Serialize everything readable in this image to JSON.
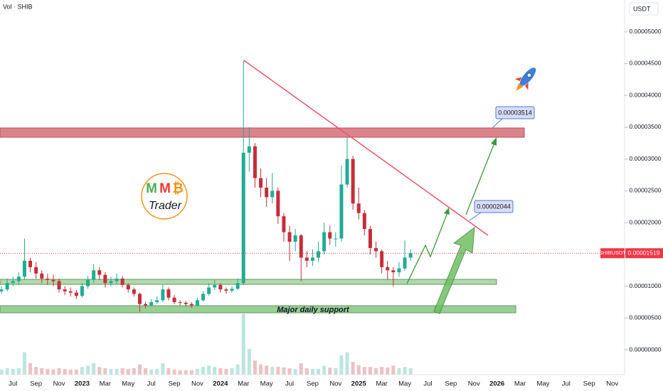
{
  "chart_data": {
    "type": "candlestick",
    "title": "Vol · SHIB",
    "currency": "USDT",
    "categories": [
      null,
      null,
      "Jul",
      null,
      null,
      null,
      "Sep",
      null,
      null,
      null,
      "Nov",
      null,
      null,
      null,
      "2023",
      null,
      null,
      null,
      "Mar",
      null,
      null,
      null,
      "May",
      null,
      null,
      null,
      "Jul",
      null,
      null,
      null,
      "Sep",
      null,
      null,
      null,
      "Nov",
      null,
      null,
      null,
      "2024",
      null,
      null,
      null,
      "Mar",
      null,
      null,
      null,
      "May",
      null,
      null,
      null,
      "Jul",
      null,
      null,
      null,
      "Sep",
      null,
      null,
      null,
      "Nov",
      null,
      null,
      null,
      "2025",
      null,
      null,
      null,
      "Mar",
      null,
      null,
      null,
      "May",
      null,
      null,
      null,
      "Jul",
      null,
      null,
      null,
      "Sep",
      null,
      null,
      null,
      "Nov",
      null,
      null,
      null,
      "2026",
      null,
      null,
      null,
      "Mar",
      null,
      null,
      null,
      "May",
      null,
      null,
      null,
      "Jul",
      null,
      null,
      null,
      "Sep",
      null,
      null,
      null,
      "Nov",
      null
    ],
    "open": [
      9.2e-06,
      9.5e-06,
      1.05e-05,
      1.08e-05,
      1.15e-05,
      1.4e-05,
      1.3e-05,
      1.2e-05,
      1.12e-05,
      1.1e-05,
      1.08e-05,
      9.5e-06,
      9.2e-06,
      9e-06,
      8.5e-06,
      1e-05,
      1.1e-05,
      1.25e-05,
      1.18e-05,
      1.05e-05,
      1.08e-05,
      1.12e-05,
      1.02e-05,
      9.5e-06,
      8.8e-06,
      7.2e-06,
      7e-06,
      7.5e-06,
      7.8e-06,
      9.5e-06,
      8.2e-06,
      7.5e-06,
      7.4e-06,
      7.2e-06,
      7e-06,
      7.8e-06,
      8.8e-06,
      9.8e-06,
      1.02e-05,
      9.5e-06,
      9.3e-06,
      9.6e-06,
      1.05e-05,
      3.1e-05,
      3.2e-05,
      2.7e-05,
      2.55e-05,
      2.4e-05,
      2.5e-05,
      2.1e-05,
      1.85e-05,
      1.7e-05,
      1.8e-05,
      1.45e-05,
      1.4e-05,
      1.45e-05,
      1.55e-05,
      1.85e-05,
      1.75e-05,
      1.75e-05,
      2.6e-05,
      3e-05,
      2.3e-05,
      2.15e-05,
      1.9e-05,
      1.6e-05,
      1.55e-05,
      1.3e-05,
      1.25e-05,
      1.22e-05,
      1.28e-05,
      1.45e-05,
      null,
      null,
      null,
      null,
      null,
      null,
      null,
      null,
      null,
      null,
      null,
      null,
      null,
      null,
      null,
      null,
      null,
      null,
      null,
      null,
      null,
      null,
      null,
      null,
      null,
      null,
      null,
      null,
      null,
      null,
      null,
      null,
      null,
      null,
      null,
      null
    ],
    "high": [
      1e-05,
      1.12e-05,
      1.15e-05,
      1.22e-05,
      1.75e-05,
      1.45e-05,
      1.38e-05,
      1.25e-05,
      1.2e-05,
      1.18e-05,
      1.12e-05,
      1e-05,
      9.8e-06,
      9.4e-06,
      1.05e-05,
      1.16e-05,
      1.35e-05,
      1.3e-05,
      1.22e-05,
      1.15e-05,
      1.2e-05,
      1.16e-05,
      1.05e-05,
      9.8e-06,
      9e-06,
      7.6e-06,
      8e-06,
      8.4e-06,
      1.02e-05,
      9.8e-06,
      8.6e-06,
      7.8e-06,
      7.7e-06,
      7.5e-06,
      8.2e-06,
      9.2e-06,
      1.05e-05,
      1.1e-05,
      1.05e-05,
      9.8e-06,
      1e-05,
      1.12e-05,
      4.55e-05,
      3.5e-05,
      3.25e-05,
      2.85e-05,
      2.7e-05,
      2.78e-05,
      2.55e-05,
      2.15e-05,
      1.95e-05,
      1.9e-05,
      1.82e-05,
      1.55e-05,
      1.58e-05,
      1.7e-05,
      2e-05,
      1.95e-05,
      1.85e-05,
      2.9e-05,
      3.35e-05,
      3.05e-05,
      2.55e-05,
      2.2e-05,
      1.95e-05,
      1.7e-05,
      1.58e-05,
      1.4e-05,
      1.3e-05,
      1.38e-05,
      1.72e-05,
      1.58e-05,
      null,
      null,
      null,
      null,
      null,
      null,
      null,
      null,
      null,
      null,
      null,
      null,
      null,
      null,
      null,
      null,
      null,
      null,
      null,
      null,
      null,
      null,
      null,
      null,
      null,
      null,
      null,
      null,
      null,
      null,
      null,
      null,
      null,
      null,
      null,
      null
    ],
    "low": [
      8.8e-06,
      9.2e-06,
      1e-05,
      1.02e-05,
      1.1e-05,
      1.22e-05,
      1.12e-05,
      1.05e-05,
      1.02e-05,
      1e-05,
      9e-06,
      8.6e-06,
      8.4e-06,
      8e-06,
      8.2e-06,
      9.6e-06,
      1.05e-05,
      1.1e-05,
      9.8e-06,
      1e-05,
      1.04e-05,
      9.8e-06,
      9e-06,
      8.4e-06,
      6e-06,
      6.5e-06,
      6.8e-06,
      7.2e-06,
      7.5e-06,
      7.8e-06,
      7.2e-06,
      7e-06,
      6.8e-06,
      6.6e-06,
      6.8e-06,
      7.6e-06,
      8.5e-06,
      9.4e-06,
      9e-06,
      8.8e-06,
      9e-06,
      9.4e-06,
      1.02e-05,
      2.8e-05,
      2.55e-05,
      2.4e-05,
      2.25e-05,
      2.3e-05,
      1.98e-05,
      1.7e-05,
      1.4e-05,
      1.55e-05,
      1.08e-05,
      1.3e-05,
      1.32e-05,
      1.38e-05,
      1.5e-05,
      1.65e-05,
      1.62e-05,
      1.7e-05,
      2.55e-05,
      2.2e-05,
      2.05e-05,
      1.8e-05,
      1.5e-05,
      1.45e-05,
      1.2e-05,
      1.1e-05,
      1e-05,
      1.15e-05,
      1.24e-05,
      1.4e-05,
      null,
      null,
      null,
      null,
      null,
      null,
      null,
      null,
      null,
      null,
      null,
      null,
      null,
      null,
      null,
      null,
      null,
      null,
      null,
      null,
      null,
      null,
      null,
      null,
      null,
      null,
      null,
      null,
      null,
      null,
      null,
      null,
      null,
      null,
      null,
      null
    ],
    "close": [
      9.5e-06,
      1.05e-05,
      1.08e-05,
      1.15e-05,
      1.4e-05,
      1.3e-05,
      1.2e-05,
      1.12e-05,
      1.1e-05,
      1.08e-05,
      9.5e-06,
      9.2e-06,
      9e-06,
      8.5e-06,
      1e-05,
      1.1e-05,
      1.25e-05,
      1.18e-05,
      1.05e-05,
      1.08e-05,
      1.12e-05,
      1.02e-05,
      9.5e-06,
      8.8e-06,
      7.2e-06,
      7e-06,
      7.5e-06,
      7.8e-06,
      9.5e-06,
      8.2e-06,
      7.5e-06,
      7.4e-06,
      7.2e-06,
      7e-06,
      7.8e-06,
      8.8e-06,
      9.8e-06,
      1.02e-05,
      9.5e-06,
      9.3e-06,
      9.6e-06,
      1.05e-05,
      3.1e-05,
      3.2e-05,
      2.7e-05,
      2.55e-05,
      2.4e-05,
      2.5e-05,
      2.1e-05,
      1.85e-05,
      1.7e-05,
      1.8e-05,
      1.45e-05,
      1.4e-05,
      1.45e-05,
      1.55e-05,
      1.85e-05,
      1.75e-05,
      1.75e-05,
      2.6e-05,
      3e-05,
      2.3e-05,
      2.15e-05,
      1.9e-05,
      1.6e-05,
      1.55e-05,
      1.3e-05,
      1.25e-05,
      1.22e-05,
      1.28e-05,
      1.45e-05,
      1.52e-05,
      null,
      null,
      null,
      null,
      null,
      null,
      null,
      null,
      null,
      null,
      null,
      null,
      null,
      null,
      null,
      null,
      null,
      null,
      null,
      null,
      null,
      null,
      null,
      null,
      null,
      null,
      null,
      null,
      null,
      null,
      null,
      null,
      null,
      null,
      null,
      null
    ],
    "volume": [
      8,
      10,
      9,
      10,
      35,
      18,
      12,
      10,
      9,
      8,
      10,
      9,
      8,
      8,
      12,
      14,
      18,
      12,
      10,
      9,
      9,
      10,
      9,
      10,
      16,
      10,
      8,
      9,
      18,
      10,
      8,
      7,
      7,
      7,
      9,
      12,
      14,
      12,
      10,
      9,
      10,
      16,
      95,
      40,
      22,
      16,
      14,
      12,
      12,
      11,
      10,
      9,
      18,
      10,
      9,
      9,
      14,
      11,
      10,
      30,
      35,
      20,
      15,
      12,
      12,
      10,
      12,
      11,
      14,
      10,
      12,
      10,
      null,
      null,
      null,
      null,
      null,
      null,
      null,
      null,
      null,
      null,
      null,
      null,
      null,
      null,
      null,
      null,
      null,
      null,
      null,
      null,
      null,
      null,
      null,
      null,
      null,
      null,
      null,
      null,
      null,
      null,
      null,
      null,
      null,
      null,
      null,
      null
    ],
    "vlim": [
      0,
      100
    ],
    "up_color": "#22ab94",
    "down_color": "#c62d3a",
    "ylim": [
      -3.9e-06,
      5.5e-05
    ],
    "yticks": [
      {
        "value": 5e-05,
        "label": "0.00005000"
      },
      {
        "value": 4.5e-05,
        "label": "0.00004500"
      },
      {
        "value": 4e-05,
        "label": "0.00004000"
      },
      {
        "value": 3.5e-05,
        "label": "0.00003500"
      },
      {
        "value": 3e-05,
        "label": "0.00003000"
      },
      {
        "value": 2.5e-05,
        "label": "0.00002500"
      },
      {
        "value": 2e-05,
        "label": "0.00002000"
      },
      {
        "value": 1.5e-05,
        "label": "0.00001500"
      },
      {
        "value": 1e-05,
        "label": "0.00001000"
      },
      {
        "value": 5e-06,
        "label": "0.00000500"
      },
      {
        "value": 0,
        "label": "0.00000000"
      }
    ],
    "last_price": {
      "symbol": "SHIBUSDT",
      "value": 1.519e-05
    },
    "annotations": {
      "resistance_target": 3.514e-05,
      "next_target": 2.044e-05,
      "support_label": "Major daily support"
    },
    "logo": {
      "letters": [
        "M",
        "M",
        "₿"
      ],
      "text": "Trader"
    }
  }
}
